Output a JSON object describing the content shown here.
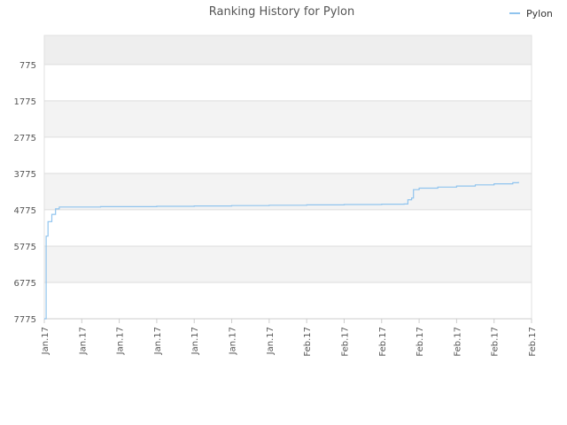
{
  "chart_data": {
    "type": "line",
    "title": "Ranking History for Pylon",
    "xlabel": "",
    "ylabel": "",
    "legend_position": "top-right",
    "grid": true,
    "y_inverted": true,
    "ylim": [
      7775,
      -25
    ],
    "y_ticks": [
      775,
      1775,
      2775,
      3775,
      4775,
      5775,
      6775,
      7775
    ],
    "x_tick_labels": [
      "Jan.17",
      "Jan.17",
      "Jan.17",
      "Jan.17",
      "Jan.17",
      "Jan.17",
      "Jan.17",
      "Feb.17",
      "Feb.17",
      "Feb.17",
      "Feb.17",
      "Feb.17",
      "Feb.17",
      "Feb.17"
    ],
    "series": [
      {
        "name": "Pylon",
        "color": "#90c4ee",
        "x": [
          0.0,
          0.05,
          0.1,
          0.2,
          0.3,
          0.4,
          0.6,
          1.0,
          1.5,
          2.0,
          3.0,
          4.0,
          5.0,
          6.0,
          7.0,
          8.0,
          9.0,
          9.6,
          9.7,
          9.8,
          9.85,
          10.0,
          10.5,
          11.0,
          11.5,
          12.0,
          12.5,
          12.65
        ],
        "values": [
          7775,
          5500,
          5100,
          4900,
          4750,
          4700,
          4700,
          4700,
          4690,
          4690,
          4680,
          4670,
          4660,
          4650,
          4640,
          4630,
          4620,
          4615,
          4500,
          4450,
          4220,
          4180,
          4150,
          4120,
          4090,
          4060,
          4030,
          4010
        ]
      }
    ]
  }
}
